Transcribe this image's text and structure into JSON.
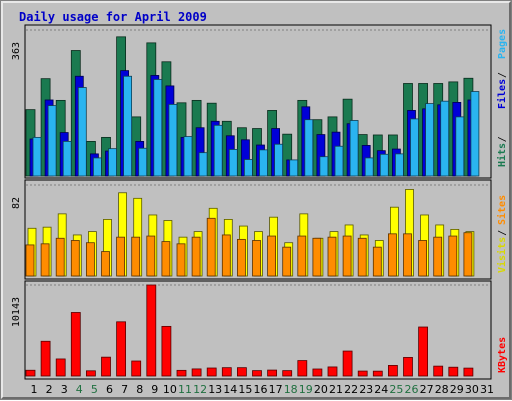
{
  "chart_data": {
    "type": "bar",
    "title": "Daily usage for April 2009",
    "days": [
      "1",
      "2",
      "3",
      "4",
      "5",
      "6",
      "7",
      "8",
      "9",
      "10",
      "11",
      "12",
      "13",
      "14",
      "15",
      "16",
      "17",
      "18",
      "19",
      "20",
      "21",
      "22",
      "23",
      "24",
      "25",
      "26",
      "27",
      "28",
      "29",
      "30",
      "31"
    ],
    "weekend_days": [
      4,
      5,
      11,
      12,
      18,
      19,
      25,
      26
    ],
    "day_color": "#000000",
    "weekend_color": "#207040",
    "panels": [
      {
        "id": "hits_files_pages",
        "max_label": "363",
        "ymax": 363,
        "series": [
          {
            "name": "Hits",
            "color": "#1a7a50",
            "values": [
              165,
              242,
              188,
              312,
              86,
              96,
              346,
              147,
              331,
              284,
              182,
              188,
              181,
              136,
              120,
              118,
              163,
              104,
              188,
              140,
              147,
              191,
              103,
              102,
              102,
              230,
              230,
              230,
              234,
              243
            ]
          },
          {
            "name": "Files",
            "color": "#0000d8",
            "values": [
              92,
              189,
              108,
              248,
              55,
              62,
              262,
              86,
              250,
              224,
              96,
              120,
              136,
              100,
              90,
              77,
              118,
              40,
              172,
              103,
              109,
              130,
              76,
              63,
              67,
              163,
              167,
              177,
              183,
              189
            ]
          },
          {
            "name": "Pages",
            "color": "#2ab4f0",
            "values": [
              96,
              175,
              86,
              220,
              45,
              68,
              248,
              69,
              240,
              178,
              98,
              58,
              126,
              66,
              41,
              65,
              79,
              40,
              140,
              48,
              74,
              138,
              45,
              54,
              55,
              142,
              180,
              186,
              147,
              210
            ]
          }
        ]
      },
      {
        "id": "visits_sites",
        "max_label": "82",
        "ymax": 82,
        "series": [
          {
            "name": "Visits",
            "color": "#ffff00",
            "values": [
              43,
              44,
              56,
              37,
              40,
              51,
              75,
              70,
              55,
              50,
              35,
              40,
              61,
              51,
              45,
              40,
              53,
              30,
              56,
              34,
              40,
              46,
              37,
              32,
              62,
              78,
              55,
              46,
              42,
              40
            ]
          },
          {
            "name": "Sites",
            "color": "#ff8c00",
            "values": [
              28,
              29,
              34,
              32,
              30,
              22,
              35,
              35,
              36,
              31,
              29,
              35,
              52,
              37,
              33,
              32,
              36,
              26,
              36,
              34,
              35,
              36,
              34,
              26,
              38,
              38,
              32,
              35,
              36,
              39
            ]
          }
        ]
      },
      {
        "id": "kbytes",
        "max_label": "10143",
        "ymax": 10143,
        "series": [
          {
            "name": "KBytes",
            "color": "#ff0000",
            "values": [
              640,
              3870,
              1900,
              7080,
              580,
              2100,
              6040,
              1670,
              10143,
              5530,
              630,
              790,
              890,
              930,
              930,
              600,
              660,
              600,
              1720,
              780,
              1010,
              2780,
              550,
              540,
              1180,
              2070,
              5460,
              1100,
              980,
              880
            ]
          }
        ]
      }
    ]
  }
}
